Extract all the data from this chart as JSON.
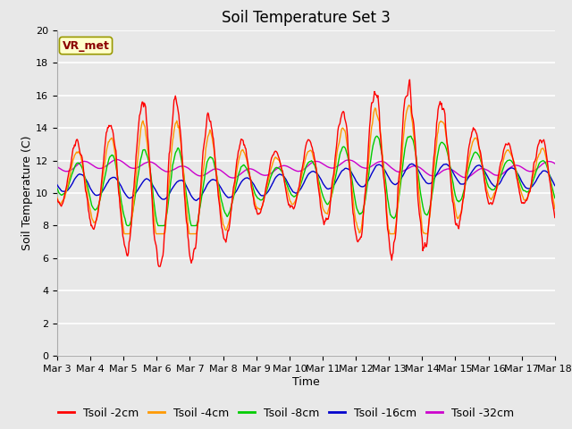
{
  "title": "Soil Temperature Set 3",
  "xlabel": "Time",
  "ylabel": "Soil Temperature (C)",
  "ylim": [
    0,
    20
  ],
  "yticks": [
    0,
    2,
    4,
    6,
    8,
    10,
    12,
    14,
    16,
    18,
    20
  ],
  "series_colors": {
    "Tsoil -2cm": "#ff0000",
    "Tsoil -4cm": "#ff9900",
    "Tsoil -8cm": "#00cc00",
    "Tsoil -16cm": "#0000cc",
    "Tsoil -32cm": "#cc00cc"
  },
  "annotation_text": "VR_met",
  "annotation_bg": "#ffffcc",
  "annotation_border": "#999900",
  "plot_bg": "#e8e8e8",
  "grid_color": "#ffffff",
  "title_fontsize": 12,
  "axis_label_fontsize": 9,
  "tick_fontsize": 8,
  "legend_fontsize": 9
}
